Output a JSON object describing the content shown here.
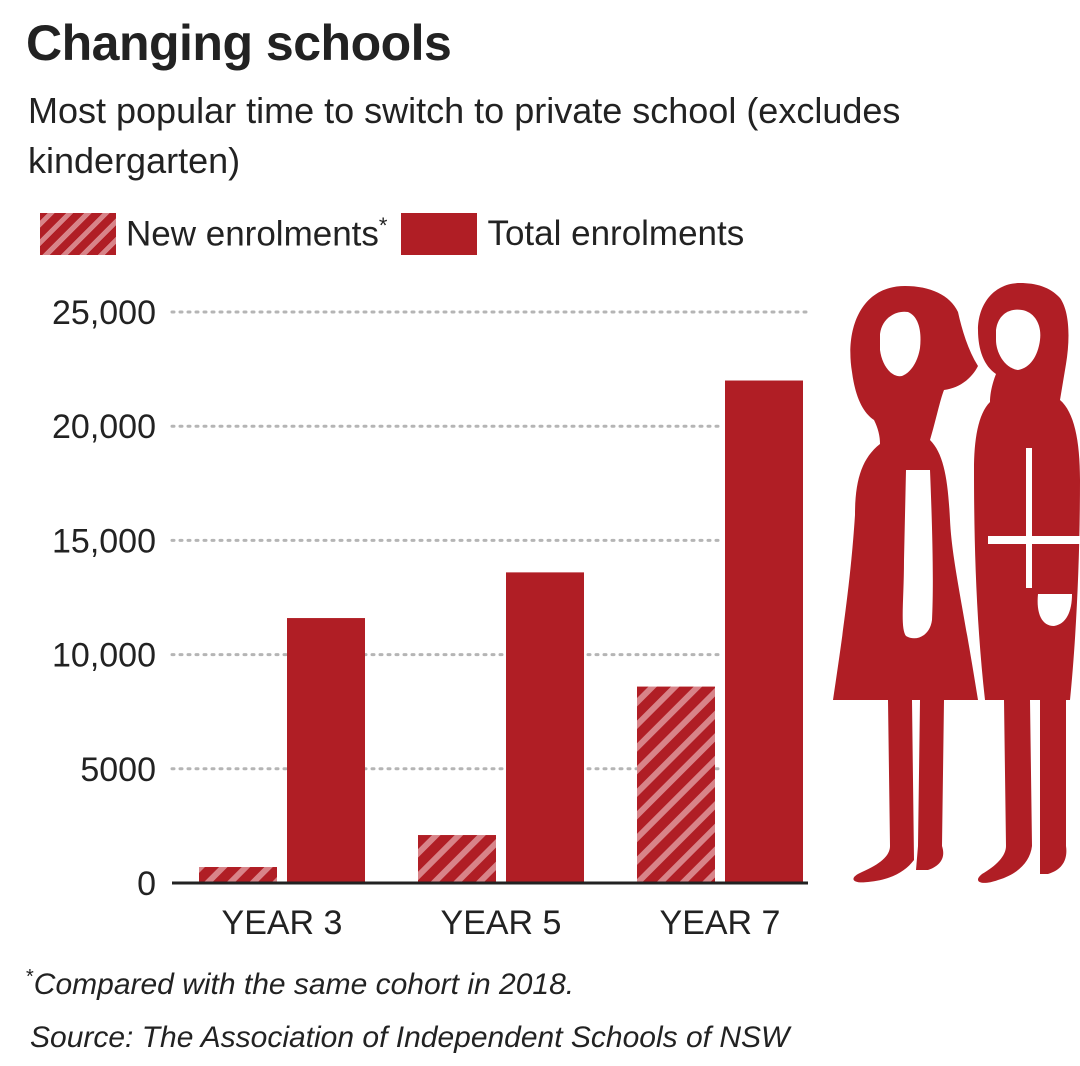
{
  "title": "Changing schools",
  "subtitle": "Most popular time to switch to private school (excludes kindergarten)",
  "legend": {
    "new_label": "New enrolments",
    "new_marker": "*",
    "total_label": "Total enrolments"
  },
  "footnote": {
    "marker": "*",
    "text": "Compared with the same cohort in 2018."
  },
  "source": "Source: The Association of Independent Schools of NSW",
  "colors": {
    "bar": "#b01e25",
    "hatch_light": "#d88489",
    "grid": "#b5b5b5",
    "axis": "#222222"
  },
  "chart_data": {
    "type": "bar",
    "categories": [
      "YEAR 3",
      "YEAR 5",
      "YEAR 7"
    ],
    "series": [
      {
        "name": "New enrolments",
        "values": [
          700,
          2100,
          8600
        ],
        "style": "hatched"
      },
      {
        "name": "Total enrolments",
        "values": [
          11600,
          13600,
          22000
        ],
        "style": "solid"
      }
    ],
    "y_ticks": [
      0,
      5000,
      10000,
      15000,
      20000,
      25000
    ],
    "y_tick_labels": [
      "0",
      "5000",
      "10,000",
      "15,000",
      "20,000",
      "25,000"
    ],
    "ylim": [
      0,
      25000
    ],
    "grid": true,
    "legend_position": "top-left",
    "decoration": "silhouette-of-two-students"
  }
}
